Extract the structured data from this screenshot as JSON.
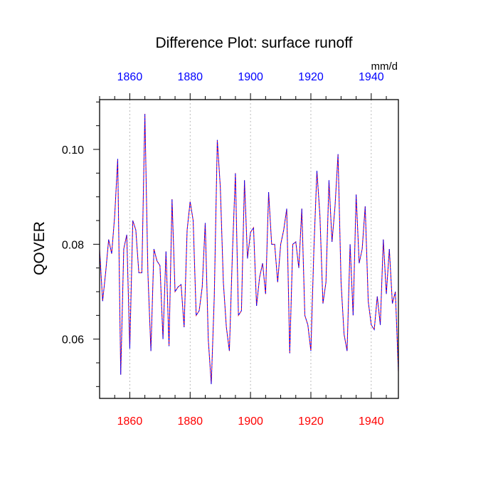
{
  "chart_data": {
    "type": "line",
    "title": "Difference Plot: surface runoff",
    "units": "mm/d",
    "ylabel": "QOVER",
    "xlabel": "",
    "xlim": [
      1850,
      1949
    ],
    "ylim": [
      0.0475,
      0.1105
    ],
    "grid": "vertical dotted lines at x ticks",
    "legend": "none",
    "x_ticks": [
      1860,
      1880,
      1900,
      1920,
      1940
    ],
    "x_tick_labels": [
      "1860",
      "1880",
      "1900",
      "1920",
      "1940"
    ],
    "y_ticks": [
      0.06,
      0.08,
      0.1
    ],
    "y_tick_labels": [
      "0.06",
      "0.08",
      "0.10"
    ],
    "colors": {
      "bottom_axis_labels": "#ff0000",
      "top_axis_labels": "#0000ff",
      "series_1": "#ff0000",
      "series_2": "#0000ff"
    },
    "series": [
      {
        "line_style": "dashed",
        "x": [
          1850,
          1851,
          1852,
          1853,
          1854,
          1855,
          1856,
          1857,
          1858,
          1859,
          1860,
          1861,
          1862,
          1863,
          1864,
          1865,
          1866,
          1867,
          1868,
          1869,
          1870,
          1871,
          1872,
          1873,
          1874,
          1875,
          1876,
          1877,
          1878,
          1879,
          1880,
          1881,
          1882,
          1883,
          1884,
          1885,
          1886,
          1887,
          1888,
          1889,
          1890,
          1891,
          1892,
          1893,
          1894,
          1895,
          1896,
          1897,
          1898,
          1899,
          1900,
          1901,
          1902,
          1903,
          1904,
          1905,
          1906,
          1907,
          1908,
          1909,
          1910,
          1911,
          1912,
          1913,
          1914,
          1915,
          1916,
          1917,
          1918,
          1919,
          1920,
          1921,
          1922,
          1923,
          1924,
          1925,
          1926,
          1927,
          1928,
          1929,
          1930,
          1931,
          1932,
          1933,
          1934,
          1935,
          1936,
          1937,
          1938,
          1939,
          1940,
          1941,
          1942,
          1943,
          1944,
          1945,
          1946,
          1947,
          1948,
          1949
        ],
        "y": [
          0.079,
          0.068,
          0.074,
          0.081,
          0.078,
          0.086,
          0.098,
          0.0525,
          0.079,
          0.082,
          0.058,
          0.085,
          0.083,
          0.074,
          0.074,
          0.1075,
          0.074,
          0.0575,
          0.079,
          0.0765,
          0.0755,
          0.06,
          0.0785,
          0.0585,
          0.0895,
          0.07,
          0.071,
          0.0715,
          0.0625,
          0.083,
          0.089,
          0.085,
          0.065,
          0.066,
          0.071,
          0.0845,
          0.06,
          0.0505,
          0.069,
          0.102,
          0.092,
          0.072,
          0.0625,
          0.0575,
          0.078,
          0.095,
          0.065,
          0.066,
          0.0935,
          0.077,
          0.0825,
          0.0835,
          0.067,
          0.073,
          0.076,
          0.0695,
          0.091,
          0.08,
          0.08,
          0.072,
          0.08,
          0.083,
          0.0875,
          0.057,
          0.08,
          0.0805,
          0.075,
          0.0875,
          0.065,
          0.063,
          0.0575,
          0.079,
          0.0955,
          0.086,
          0.0675,
          0.072,
          0.0935,
          0.0805,
          0.088,
          0.099,
          0.072,
          0.061,
          0.0575,
          0.08,
          0.065,
          0.0905,
          0.076,
          0.079,
          0.088,
          0.068,
          0.063,
          0.062,
          0.069,
          0.063,
          0.081,
          0.0695,
          0.079,
          0.0675,
          0.07,
          0.053
        ]
      },
      {
        "line_style": "dashed",
        "x": [
          1850,
          1851,
          1852,
          1853,
          1854,
          1855,
          1856,
          1857,
          1858,
          1859,
          1860,
          1861,
          1862,
          1863,
          1864,
          1865,
          1866,
          1867,
          1868,
          1869,
          1870,
          1871,
          1872,
          1873,
          1874,
          1875,
          1876,
          1877,
          1878,
          1879,
          1880,
          1881,
          1882,
          1883,
          1884,
          1885,
          1886,
          1887,
          1888,
          1889,
          1890,
          1891,
          1892,
          1893,
          1894,
          1895,
          1896,
          1897,
          1898,
          1899,
          1900,
          1901,
          1902,
          1903,
          1904,
          1905,
          1906,
          1907,
          1908,
          1909,
          1910,
          1911,
          1912,
          1913,
          1914,
          1915,
          1916,
          1917,
          1918,
          1919,
          1920,
          1921,
          1922,
          1923,
          1924,
          1925,
          1926,
          1927,
          1928,
          1929,
          1930,
          1931,
          1932,
          1933,
          1934,
          1935,
          1936,
          1937,
          1938,
          1939,
          1940,
          1941,
          1942,
          1943,
          1944,
          1945,
          1946,
          1947,
          1948,
          1949
        ],
        "y": [
          0.079,
          0.068,
          0.074,
          0.081,
          0.078,
          0.086,
          0.098,
          0.0525,
          0.079,
          0.082,
          0.058,
          0.085,
          0.083,
          0.074,
          0.074,
          0.1075,
          0.074,
          0.0575,
          0.079,
          0.0765,
          0.0755,
          0.06,
          0.0785,
          0.0585,
          0.0895,
          0.07,
          0.071,
          0.0715,
          0.0625,
          0.083,
          0.089,
          0.085,
          0.065,
          0.066,
          0.071,
          0.0845,
          0.06,
          0.0505,
          0.069,
          0.102,
          0.092,
          0.072,
          0.0625,
          0.0575,
          0.078,
          0.095,
          0.065,
          0.066,
          0.0935,
          0.077,
          0.0825,
          0.0835,
          0.067,
          0.073,
          0.076,
          0.0695,
          0.091,
          0.08,
          0.08,
          0.072,
          0.08,
          0.083,
          0.0875,
          0.057,
          0.08,
          0.0805,
          0.075,
          0.0875,
          0.065,
          0.063,
          0.0575,
          0.079,
          0.0955,
          0.086,
          0.0675,
          0.072,
          0.0935,
          0.0805,
          0.088,
          0.099,
          0.072,
          0.061,
          0.0575,
          0.08,
          0.065,
          0.0905,
          0.076,
          0.079,
          0.088,
          0.068,
          0.063,
          0.062,
          0.069,
          0.063,
          0.081,
          0.0695,
          0.079,
          0.0675,
          0.07,
          0.053
        ]
      }
    ]
  }
}
